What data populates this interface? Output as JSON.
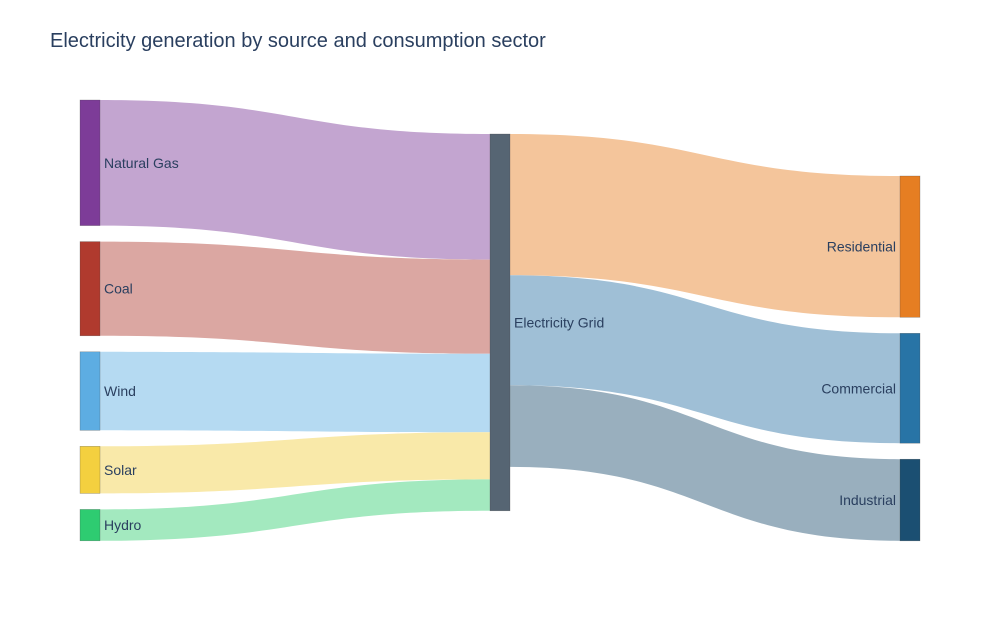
{
  "chart_data": {
    "type": "sankey",
    "title": "Electricity generation by source and consumption sector",
    "nodes": [
      {
        "id": "natural-gas",
        "label": "Natural Gas",
        "color": "#7d3c98"
      },
      {
        "id": "coal",
        "label": "Coal",
        "color": "#b03a2e"
      },
      {
        "id": "wind",
        "label": "Wind",
        "color": "#5dade2"
      },
      {
        "id": "solar",
        "label": "Solar",
        "color": "#f4d03f"
      },
      {
        "id": "hydro",
        "label": "Hydro",
        "color": "#2ecc71"
      },
      {
        "id": "grid",
        "label": "Electricity Grid",
        "color": "#566573"
      },
      {
        "id": "residential",
        "label": "Residential",
        "color": "#e67e22"
      },
      {
        "id": "commercial",
        "label": "Commercial",
        "color": "#2874a6"
      },
      {
        "id": "industrial",
        "label": "Industrial",
        "color": "#1b4f72"
      }
    ],
    "links": [
      {
        "source": "natural-gas",
        "target": "grid",
        "value": 40,
        "color": "#c3a5d0"
      },
      {
        "source": "coal",
        "target": "grid",
        "value": 30,
        "color": "#dba7a2"
      },
      {
        "source": "wind",
        "target": "grid",
        "value": 25,
        "color": "#b5daf2"
      },
      {
        "source": "solar",
        "target": "grid",
        "value": 15,
        "color": "#f9e9a9"
      },
      {
        "source": "hydro",
        "target": "grid",
        "value": 10,
        "color": "#a3e9bf"
      },
      {
        "source": "grid",
        "target": "residential",
        "value": 45,
        "color": "#f4c59b"
      },
      {
        "source": "grid",
        "target": "commercial",
        "value": 35,
        "color": "#9fbfd6"
      },
      {
        "source": "grid",
        "target": "industrial",
        "value": 26,
        "color": "#99afbe"
      }
    ]
  }
}
